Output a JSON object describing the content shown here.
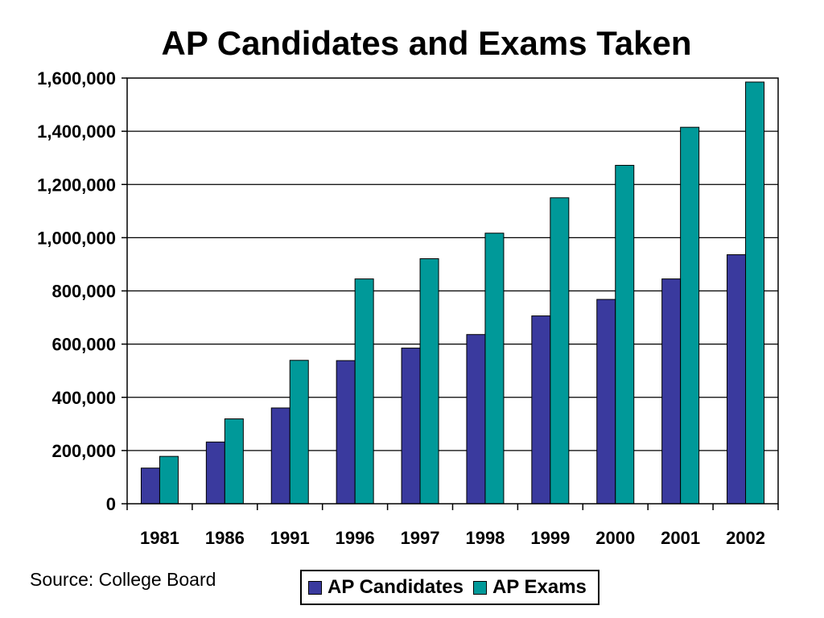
{
  "chart_data": {
    "type": "bar",
    "title": "AP Candidates and Exams Taken",
    "categories": [
      "1981",
      "1986",
      "1991",
      "1996",
      "1997",
      "1998",
      "1999",
      "2000",
      "2001",
      "2002"
    ],
    "series": [
      {
        "name": "AP Candidates",
        "color": "#3a3a9e",
        "values": [
          134000,
          232000,
          360000,
          538000,
          585000,
          636000,
          706000,
          768000,
          845000,
          936000
        ]
      },
      {
        "name": "AP Exams",
        "color": "#009999",
        "values": [
          178000,
          319000,
          539000,
          845000,
          921000,
          1017000,
          1150000,
          1272000,
          1415000,
          1585000
        ]
      }
    ],
    "ylim": [
      0,
      1600000
    ],
    "yticks": [
      0,
      200000,
      400000,
      600000,
      800000,
      1000000,
      1200000,
      1400000,
      1600000
    ],
    "ytick_labels": [
      "0",
      "200,000",
      "400,000",
      "600,000",
      "800,000",
      "1,000,000",
      "1,200,000",
      "1,400,000",
      "1,600,000"
    ],
    "grid": true,
    "legend_position": "bottom-center",
    "source": "Source: College Board"
  }
}
